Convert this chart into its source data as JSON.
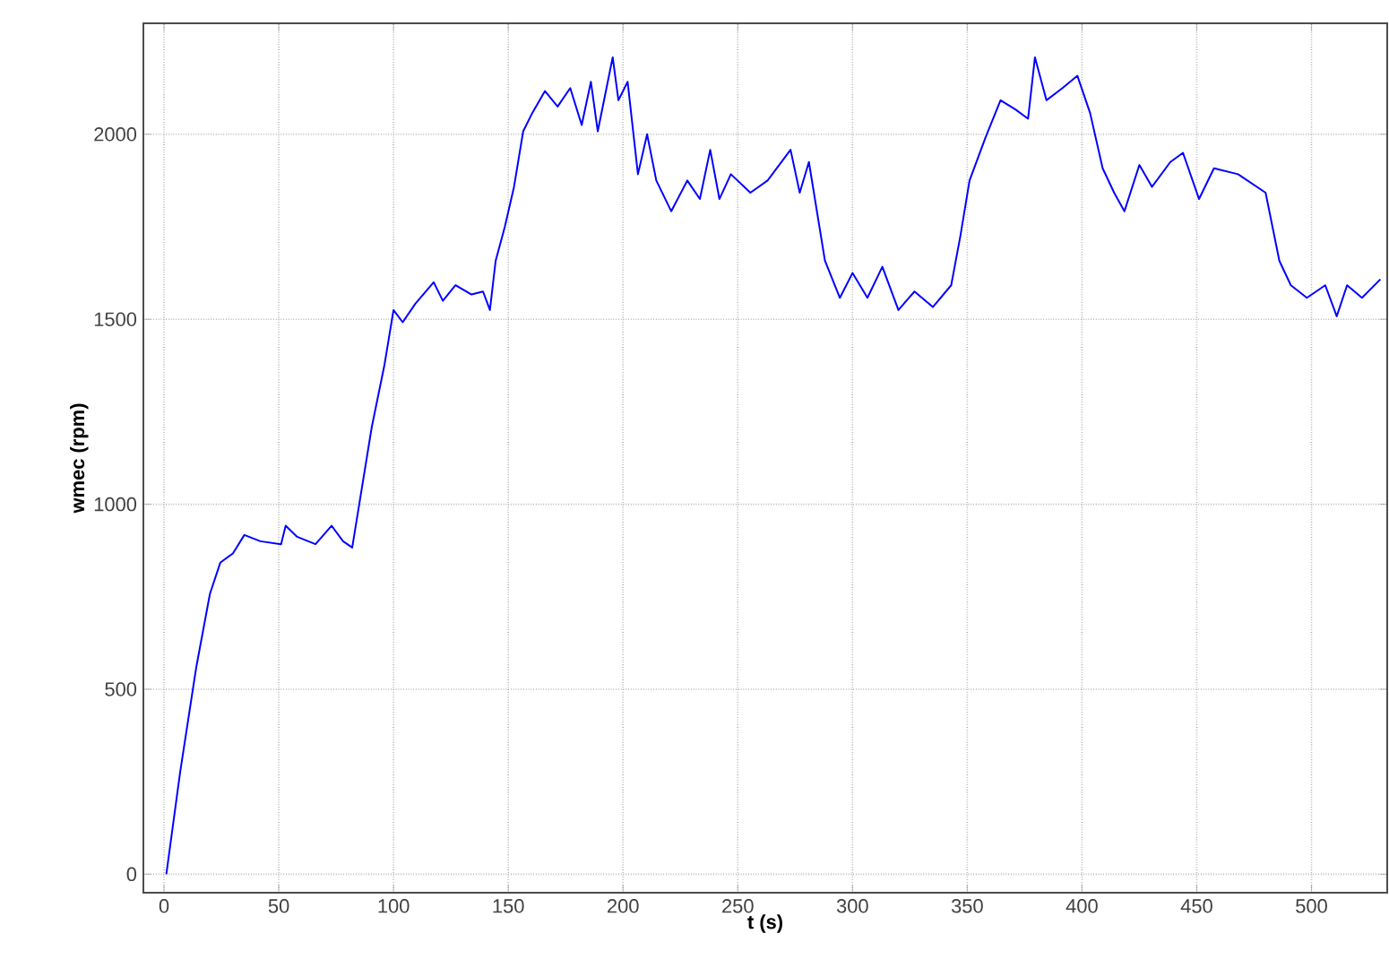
{
  "chart_data": {
    "type": "line",
    "xlabel": "t (s)",
    "ylabel": "wmec (rpm)",
    "xlim": [
      -9,
      533
    ],
    "ylim": [
      -50,
      2300
    ],
    "xticks": [
      0,
      50,
      100,
      150,
      200,
      250,
      300,
      350,
      400,
      450,
      500
    ],
    "yticks": [
      0,
      500,
      1000,
      1500,
      2000
    ],
    "grid": true,
    "line_style": "solid",
    "series": [
      {
        "color": "#0000ff",
        "x": [
          1,
          7,
          14,
          20,
          24.5,
          30,
          35,
          42,
          51,
          53,
          58,
          66,
          73,
          78,
          82,
          90.5,
          96,
          100,
          104,
          109.5,
          117.5,
          121.5,
          127,
          134,
          139,
          142,
          144.5,
          148.5,
          152.5,
          156.5,
          160.5,
          166,
          171.5,
          177,
          182,
          186,
          189,
          195.5,
          198,
          202,
          206.5,
          210.5,
          214.5,
          221,
          228,
          233.5,
          238,
          242,
          247,
          255.5,
          263,
          273,
          277,
          281,
          288,
          294.5,
          300,
          306.5,
          313,
          320,
          327,
          335,
          343,
          347,
          351,
          358,
          364.5,
          371,
          376.5,
          379.5,
          384.5,
          391.5,
          398,
          403.5,
          409,
          414,
          418.5,
          425,
          430.5,
          438.5,
          444,
          451,
          457.5,
          468,
          480,
          486,
          491,
          498,
          506,
          511,
          515.5,
          522,
          530
        ],
        "values": [
          0,
          275,
          558,
          758,
          842,
          867,
          917,
          900,
          892,
          942,
          912,
          892,
          942,
          900,
          883,
          1208,
          1375,
          1525,
          1492,
          1542,
          1600,
          1550,
          1592,
          1567,
          1575,
          1525,
          1658,
          1750,
          1858,
          2008,
          2058,
          2117,
          2075,
          2125,
          2025,
          2142,
          2008,
          2208,
          2092,
          2142,
          1892,
          2000,
          1875,
          1792,
          1875,
          1825,
          1958,
          1825,
          1892,
          1842,
          1875,
          1958,
          1842,
          1925,
          1658,
          1558,
          1625,
          1558,
          1642,
          1525,
          1575,
          1533,
          1592,
          1725,
          1875,
          1992,
          2092,
          2067,
          2042,
          2208,
          2092,
          2125,
          2158,
          2058,
          1908,
          1842,
          1792,
          1917,
          1858,
          1925,
          1950,
          1825,
          1908,
          1892,
          1842,
          1658,
          1592,
          1558,
          1592,
          1508,
          1592,
          1558,
          1608
        ]
      }
    ]
  }
}
